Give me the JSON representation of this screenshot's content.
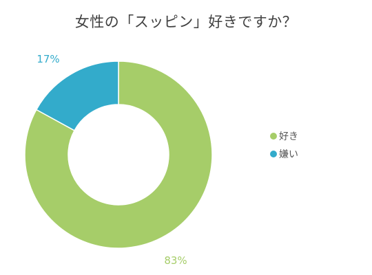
{
  "chart_data": {
    "type": "pie",
    "title": "女性の「スッピン」好きですか？",
    "donut": true,
    "legend_position": "right",
    "slices": [
      {
        "label": "好き",
        "value": 83,
        "display": "83%",
        "color": "#a6cd69"
      },
      {
        "label": "嫌い",
        "value": 17,
        "display": "17%",
        "color": "#33abcb"
      }
    ]
  }
}
